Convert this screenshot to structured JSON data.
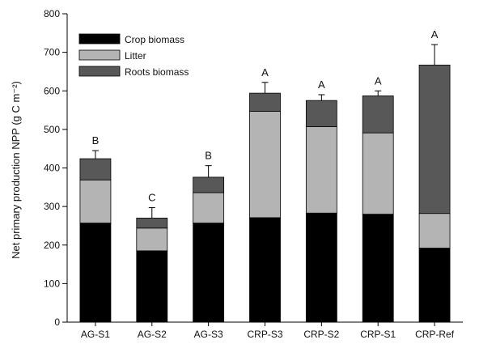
{
  "chart_data": {
    "type": "bar",
    "stacked": true,
    "title": "",
    "xlabel": "",
    "ylabel": "Net primary production NPP (g C m⁻²)",
    "ylim": [
      0,
      800
    ],
    "yticks": [
      0,
      100,
      200,
      300,
      400,
      500,
      600,
      700,
      800
    ],
    "grid": false,
    "legend_position": "top-left",
    "categories": [
      "AG-S1",
      "AG-S2",
      "AG-S3",
      "CRP-S3",
      "CRP-S2",
      "CRP-S1",
      "CRP-Ref"
    ],
    "series": [
      {
        "name": "Crop biomass",
        "color": "#000000",
        "values": [
          257,
          185,
          257,
          271,
          283,
          280,
          192
        ]
      },
      {
        "name": "Litter",
        "color": "#b4b4b4",
        "values": [
          112,
          59,
          79,
          276,
          224,
          211,
          90
        ]
      },
      {
        "name": "Roots biomass",
        "color": "#585858",
        "values": [
          55,
          26,
          40,
          47,
          68,
          96,
          385
        ]
      }
    ],
    "error_bar_tops": [
      445,
      297,
      406,
      622,
      590,
      600,
      720
    ],
    "significance_letters": [
      "B",
      "C",
      "B",
      "A",
      "A",
      "A",
      "A"
    ]
  }
}
